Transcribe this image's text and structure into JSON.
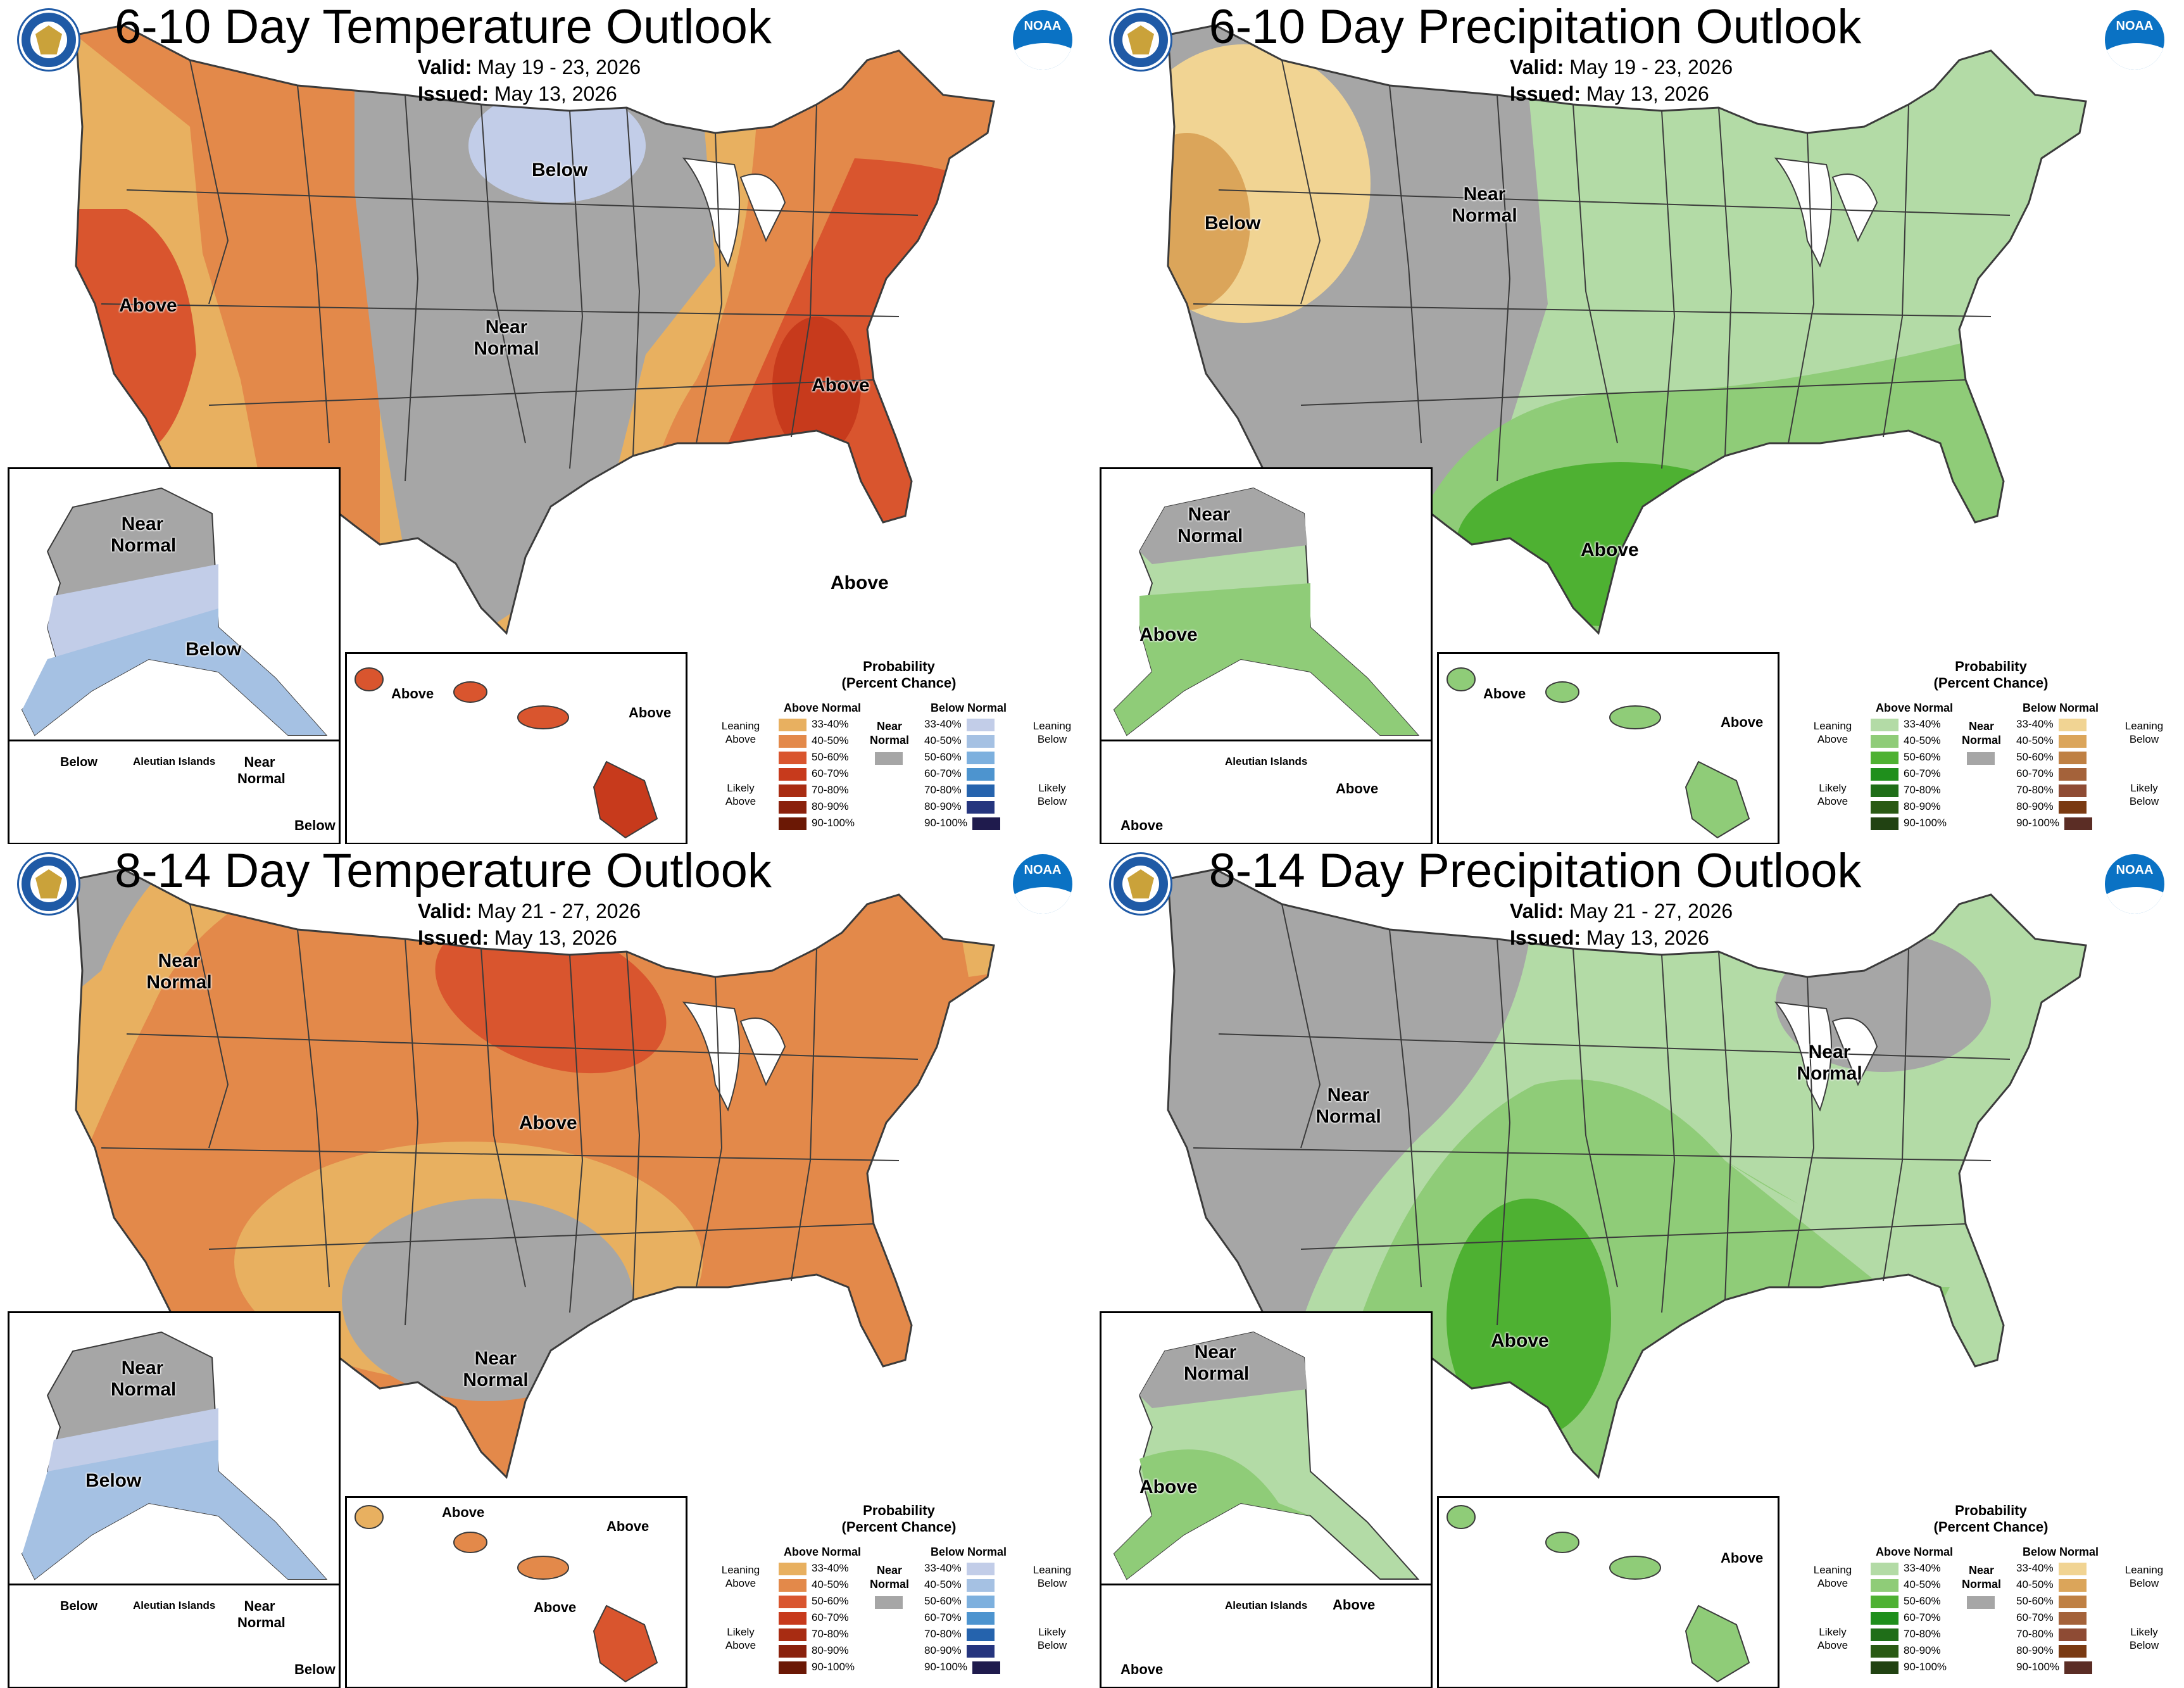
{
  "panels": [
    {
      "id": "610-temp",
      "title": "6-10 Day Temperature Outlook",
      "valid_label": "Valid:",
      "valid": "May 19 - 23, 2026",
      "issued_label": "Issued:",
      "issued": "May 13, 2026",
      "kind": "temp",
      "conus_labels": [
        "Below",
        "Above",
        "Near Normal",
        "Above",
        "Above"
      ],
      "alaska_labels": [
        "Near Normal",
        "Below"
      ],
      "aleutian_labels": [
        "Below",
        "Aleutian Islands",
        "Near Normal",
        "Below"
      ],
      "hawaii_labels": [
        "Above",
        "Above"
      ]
    },
    {
      "id": "610-precip",
      "title": "6-10 Day Precipitation Outlook",
      "valid_label": "Valid:",
      "valid": "May 19 - 23, 2026",
      "issued_label": "Issued:",
      "issued": "May 13, 2026",
      "kind": "precip",
      "conus_labels": [
        "Below",
        "Near Normal",
        "Above"
      ],
      "alaska_labels": [
        "Near Normal",
        "Above"
      ],
      "aleutian_labels": [
        "Aleutian Islands",
        "Above",
        "Above"
      ],
      "hawaii_labels": [
        "Above",
        "Above"
      ]
    },
    {
      "id": "814-temp",
      "title": "8-14 Day Temperature Outlook",
      "valid_label": "Valid:",
      "valid": "May 21 - 27, 2026",
      "issued_label": "Issued:",
      "issued": "May 13, 2026",
      "kind": "temp",
      "conus_labels": [
        "Near Normal",
        "Above",
        "Near Normal"
      ],
      "alaska_labels": [
        "Near Normal",
        "Below"
      ],
      "aleutian_labels": [
        "Below",
        "Aleutian Islands",
        "Near Normal",
        "Below"
      ],
      "hawaii_labels": [
        "Above",
        "Above",
        "Above"
      ]
    },
    {
      "id": "814-precip",
      "title": "8-14 Day Precipitation Outlook",
      "valid_label": "Valid:",
      "valid": "May 21 - 27, 2026",
      "issued_label": "Issued:",
      "issued": "May 13, 2026",
      "kind": "precip",
      "conus_labels": [
        "Near Normal",
        "Near Normal",
        "Above"
      ],
      "alaska_labels": [
        "Near Normal",
        "Above"
      ],
      "aleutian_labels": [
        "Aleutian Islands",
        "Above",
        "Above"
      ],
      "hawaii_labels": [
        "Above"
      ]
    }
  ],
  "logos": {
    "noaa_text": "NOAA"
  },
  "legend_temp": {
    "title": "Probability\n(Percent Chance)",
    "above_header": "Above Normal",
    "below_header": "Below Normal",
    "near_normal": "Near\nNormal",
    "leaning_above": "Leaning\nAbove",
    "likely_above": "Likely\nAbove",
    "leaning_below": "Leaning\nBelow",
    "likely_below": "Likely\nBelow",
    "ranges": [
      "33-40%",
      "40-50%",
      "50-60%",
      "60-70%",
      "70-80%",
      "80-90%",
      "90-100%"
    ],
    "above_colors": [
      "#e8b060",
      "#e3894a",
      "#d9552e",
      "#c73a1c",
      "#a82c12",
      "#8a210c",
      "#6b1805"
    ],
    "below_colors": [
      "#c2cde8",
      "#a5c1e3",
      "#7db0de",
      "#4d94cf",
      "#2563ad",
      "#25357e",
      "#1f1b4d"
    ]
  },
  "legend_precip": {
    "title": "Probability\n(Percent Chance)",
    "above_header": "Above Normal",
    "below_header": "Below Normal",
    "near_normal": "Near\nNormal",
    "leaning_above": "Leaning\nAbove",
    "likely_above": "Likely\nAbove",
    "leaning_below": "Leaning\nBelow",
    "likely_below": "Likely\nBelow",
    "ranges": [
      "33-40%",
      "40-50%",
      "50-60%",
      "60-70%",
      "70-80%",
      "80-90%",
      "90-100%"
    ],
    "above_colors": [
      "#b3dba6",
      "#8fcc78",
      "#4eb132",
      "#1f8f1c",
      "#1f6e18",
      "#2a5a14",
      "#214212"
    ],
    "below_colors": [
      "#f1d493",
      "#dba55a",
      "#bf8043",
      "#a4623a",
      "#8e4b34",
      "#7a3a12",
      "#5b2d25"
    ]
  },
  "colors": {
    "near_normal": "#a6a6a6",
    "great_lakes": "#ffffff",
    "border": "#3b3b3b"
  }
}
